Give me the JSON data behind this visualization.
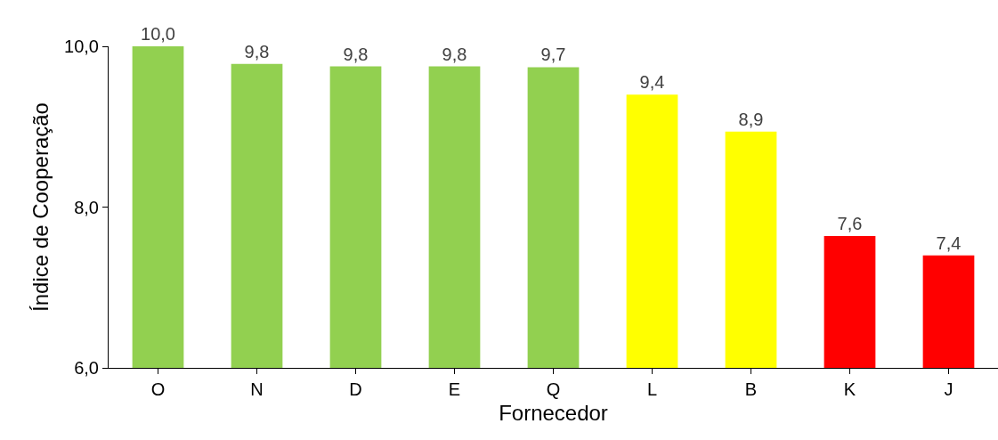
{
  "chart_data": {
    "type": "bar",
    "xlabel": "Fornecedor",
    "ylabel": "Índice de Cooperação",
    "categories": [
      "O",
      "N",
      "D",
      "E",
      "Q",
      "L",
      "B",
      "K",
      "J"
    ],
    "values": [
      10.0,
      9.78,
      9.75,
      9.75,
      9.74,
      9.4,
      8.94,
      7.64,
      7.4
    ],
    "value_labels": [
      "10,0",
      "9,8",
      "9,8",
      "9,8",
      "9,7",
      "9,4",
      "8,9",
      "7,6",
      "7,4"
    ],
    "colors": [
      "#92d050",
      "#92d050",
      "#92d050",
      "#92d050",
      "#92d050",
      "#ffff00",
      "#ffff00",
      "#ff0000",
      "#ff0000"
    ],
    "yticks": [
      {
        "value": 6,
        "label": "6,0"
      },
      {
        "value": 8,
        "label": "8,0"
      },
      {
        "value": 10,
        "label": "10,0"
      }
    ],
    "ylim": [
      6,
      10
    ]
  }
}
